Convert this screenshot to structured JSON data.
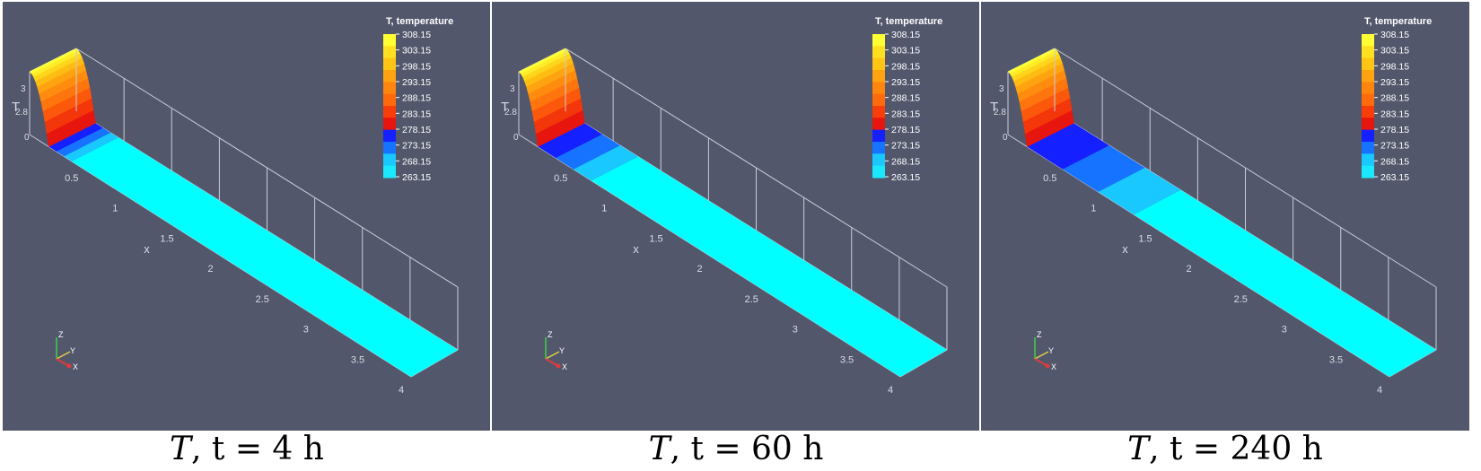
{
  "colorbar": {
    "title": "T, temperature",
    "labels": [
      "308.15",
      "303.15",
      "298.15",
      "293.15",
      "288.15",
      "283.15",
      "278.15",
      "273.15",
      "268.15",
      "263.15"
    ],
    "bands": [
      "#ffff33",
      "#ffe020",
      "#ffc414",
      "#ffa310",
      "#ff860e",
      "#ff6a0c",
      "#f73e0a",
      "#e6150d",
      "#1420ff",
      "#1673ff",
      "#19c8ff",
      "#1ae8ff"
    ]
  },
  "axes": {
    "x_label": "x",
    "t_label": "T",
    "x_ticks": [
      "0.5",
      "1",
      "1.5",
      "2",
      "2.5",
      "3",
      "3.5",
      "4"
    ],
    "t_ticks": [
      "3",
      "2.8",
      "0"
    ],
    "orient": {
      "z": "Z",
      "y": "Y",
      "x": "X"
    }
  },
  "panels": [
    {
      "caption_var": "T",
      "caption_rest": ", t = 4 h",
      "blue_fraction": 0.06
    },
    {
      "caption_var": "T",
      "caption_rest": ", t = 60 h",
      "blue_fraction": 0.14
    },
    {
      "caption_var": "T",
      "caption_rest": ", t = 240 h",
      "blue_fraction": 0.28
    }
  ]
}
